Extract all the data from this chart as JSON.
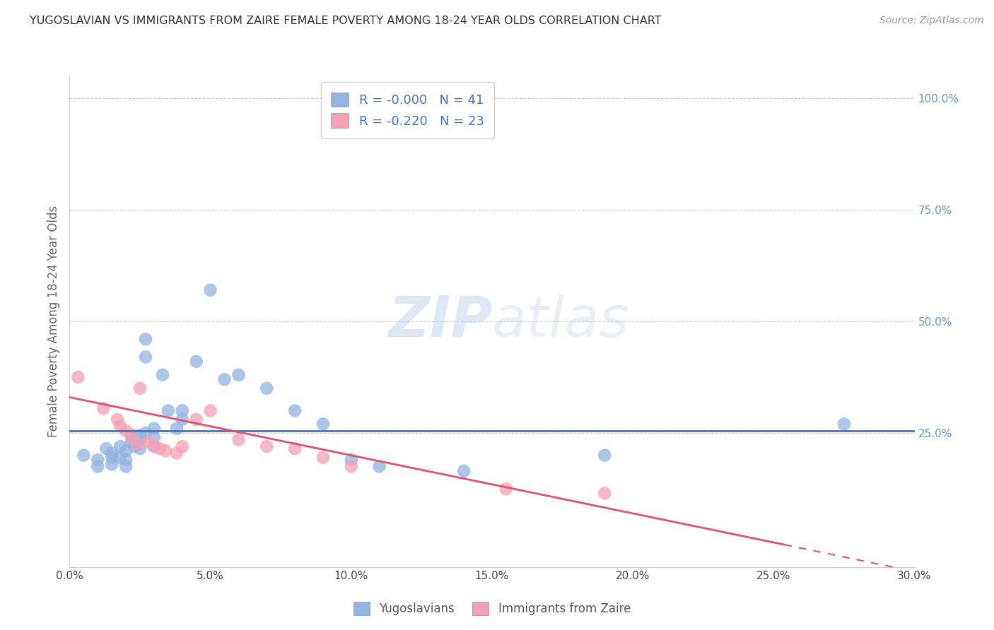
{
  "title": "YUGOSLAVIAN VS IMMIGRANTS FROM ZAIRE FEMALE POVERTY AMONG 18-24 YEAR OLDS CORRELATION CHART",
  "source": "Source: ZipAtlas.com",
  "ylabel": "Female Poverty Among 18-24 Year Olds",
  "xlim": [
    0.0,
    0.3
  ],
  "ylim": [
    -0.05,
    1.05
  ],
  "xtick_labels": [
    "0.0%",
    "5.0%",
    "10.0%",
    "15.0%",
    "20.0%",
    "25.0%",
    "30.0%"
  ],
  "xtick_vals": [
    0.0,
    0.05,
    0.1,
    0.15,
    0.2,
    0.25,
    0.3
  ],
  "ytick_labels": [
    "25.0%",
    "50.0%",
    "75.0%",
    "100.0%"
  ],
  "ytick_vals": [
    0.25,
    0.5,
    0.75,
    1.0
  ],
  "legend1_r": "-0.000",
  "legend1_n": "41",
  "legend2_r": "-0.220",
  "legend2_n": "23",
  "legend_label1": "Yugoslavians",
  "legend_label2": "Immigrants from Zaire",
  "blue_color": "#92b4e0",
  "pink_color": "#f4a0b5",
  "blue_line_color": "#4472c4",
  "pink_line_color": "#e05070",
  "watermark_zip": "ZIP",
  "watermark_atlas": "atlas",
  "blue_x": [
    0.005,
    0.01,
    0.01,
    0.013,
    0.015,
    0.015,
    0.015,
    0.018,
    0.018,
    0.02,
    0.02,
    0.02,
    0.022,
    0.022,
    0.023,
    0.025,
    0.025,
    0.025,
    0.027,
    0.027,
    0.027,
    0.03,
    0.03,
    0.03,
    0.033,
    0.035,
    0.038,
    0.04,
    0.04,
    0.045,
    0.05,
    0.055,
    0.06,
    0.07,
    0.08,
    0.09,
    0.1,
    0.11,
    0.14,
    0.19,
    0.275
  ],
  "blue_y": [
    0.2,
    0.19,
    0.175,
    0.215,
    0.205,
    0.195,
    0.18,
    0.22,
    0.195,
    0.21,
    0.19,
    0.175,
    0.245,
    0.23,
    0.22,
    0.245,
    0.235,
    0.215,
    0.46,
    0.42,
    0.25,
    0.26,
    0.24,
    0.22,
    0.38,
    0.3,
    0.26,
    0.3,
    0.28,
    0.41,
    0.57,
    0.37,
    0.38,
    0.35,
    0.3,
    0.27,
    0.19,
    0.175,
    0.165,
    0.2,
    0.27
  ],
  "pink_x": [
    0.003,
    0.012,
    0.017,
    0.018,
    0.02,
    0.022,
    0.024,
    0.025,
    0.028,
    0.03,
    0.032,
    0.034,
    0.038,
    0.04,
    0.045,
    0.05,
    0.06,
    0.07,
    0.08,
    0.09,
    0.1,
    0.155,
    0.19
  ],
  "pink_y": [
    0.375,
    0.305,
    0.28,
    0.265,
    0.255,
    0.24,
    0.225,
    0.35,
    0.23,
    0.22,
    0.215,
    0.21,
    0.205,
    0.22,
    0.28,
    0.3,
    0.235,
    0.22,
    0.215,
    0.195,
    0.175,
    0.125,
    0.115
  ],
  "blue_trend_x": [
    0.0,
    0.3
  ],
  "blue_trend_y": [
    0.255,
    0.255
  ],
  "pink_trend_x": [
    0.0,
    0.3
  ],
  "pink_trend_y": [
    0.33,
    -0.06
  ],
  "grid_color": "#cccccc",
  "background_color": "#ffffff"
}
